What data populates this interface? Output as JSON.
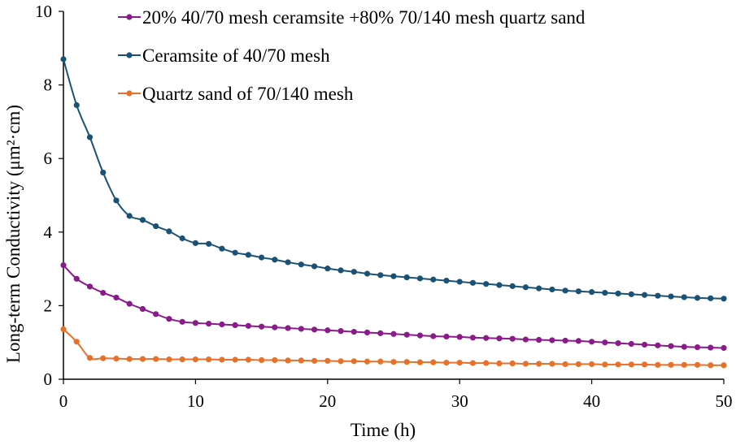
{
  "chart_data": {
    "type": "line",
    "title": "",
    "xlabel": "Time (h)",
    "ylabel": "Long-term Conductivity (μm²·cm)",
    "xlim": [
      0,
      50
    ],
    "ylim": [
      0,
      10
    ],
    "xticks": [
      0,
      10,
      20,
      30,
      40,
      50
    ],
    "yticks": [
      0,
      2,
      4,
      6,
      8,
      10
    ],
    "grid": false,
    "legend_position": "top-right",
    "series": [
      {
        "name": "20% 40/70 mesh ceramsite +80% 70/140 mesh quartz sand",
        "color": "#8b1a8b",
        "x": [
          0,
          1,
          2,
          3,
          4,
          5,
          6,
          7,
          8,
          9,
          10,
          11,
          12,
          13,
          14,
          15,
          16,
          17,
          18,
          19,
          20,
          21,
          22,
          23,
          24,
          25,
          26,
          27,
          28,
          29,
          30,
          31,
          32,
          33,
          34,
          35,
          36,
          37,
          38,
          39,
          40,
          41,
          42,
          43,
          44,
          45,
          46,
          47,
          48,
          49,
          50
        ],
        "values": [
          3.1,
          2.73,
          2.52,
          2.35,
          2.22,
          2.05,
          1.91,
          1.77,
          1.64,
          1.56,
          1.53,
          1.51,
          1.49,
          1.47,
          1.45,
          1.43,
          1.41,
          1.39,
          1.37,
          1.35,
          1.33,
          1.31,
          1.29,
          1.27,
          1.25,
          1.23,
          1.21,
          1.19,
          1.17,
          1.16,
          1.15,
          1.13,
          1.12,
          1.11,
          1.1,
          1.08,
          1.07,
          1.06,
          1.05,
          1.04,
          1.02,
          1.0,
          0.98,
          0.96,
          0.94,
          0.92,
          0.9,
          0.88,
          0.87,
          0.86,
          0.85
        ]
      },
      {
        "name": "Ceramsite of  40/70 mesh",
        "color": "#1a5276",
        "x": [
          0,
          1,
          2,
          3,
          4,
          5,
          6,
          7,
          8,
          9,
          10,
          11,
          12,
          13,
          14,
          15,
          16,
          17,
          18,
          19,
          20,
          21,
          22,
          23,
          24,
          25,
          26,
          27,
          28,
          29,
          30,
          31,
          32,
          33,
          34,
          35,
          36,
          37,
          38,
          39,
          40,
          41,
          42,
          43,
          44,
          45,
          46,
          47,
          48,
          49,
          50
        ],
        "values": [
          8.7,
          7.45,
          6.58,
          5.62,
          4.86,
          4.44,
          4.33,
          4.16,
          4.02,
          3.83,
          3.7,
          3.68,
          3.55,
          3.44,
          3.38,
          3.31,
          3.25,
          3.18,
          3.12,
          3.07,
          3.01,
          2.96,
          2.92,
          2.87,
          2.83,
          2.8,
          2.77,
          2.74,
          2.71,
          2.68,
          2.65,
          2.62,
          2.59,
          2.56,
          2.53,
          2.5,
          2.47,
          2.44,
          2.41,
          2.39,
          2.37,
          2.35,
          2.33,
          2.31,
          2.29,
          2.27,
          2.25,
          2.23,
          2.21,
          2.2,
          2.19
        ]
      },
      {
        "name": "Quartz sand of 70/140 mesh",
        "color": "#e8712a",
        "x": [
          0,
          1,
          2,
          3,
          4,
          5,
          6,
          7,
          8,
          9,
          10,
          11,
          12,
          13,
          14,
          15,
          16,
          17,
          18,
          19,
          20,
          21,
          22,
          23,
          24,
          25,
          26,
          27,
          28,
          29,
          30,
          31,
          32,
          33,
          34,
          35,
          36,
          37,
          38,
          39,
          40,
          41,
          42,
          43,
          44,
          45,
          46,
          47,
          48,
          49,
          50
        ],
        "values": [
          1.36,
          1.02,
          0.58,
          0.57,
          0.56,
          0.55,
          0.55,
          0.55,
          0.54,
          0.54,
          0.54,
          0.54,
          0.53,
          0.53,
          0.53,
          0.52,
          0.52,
          0.51,
          0.51,
          0.5,
          0.5,
          0.49,
          0.49,
          0.48,
          0.48,
          0.47,
          0.47,
          0.46,
          0.46,
          0.45,
          0.45,
          0.44,
          0.44,
          0.43,
          0.43,
          0.42,
          0.42,
          0.42,
          0.41,
          0.41,
          0.41,
          0.4,
          0.4,
          0.4,
          0.4,
          0.39,
          0.39,
          0.39,
          0.39,
          0.38,
          0.38
        ]
      }
    ]
  }
}
